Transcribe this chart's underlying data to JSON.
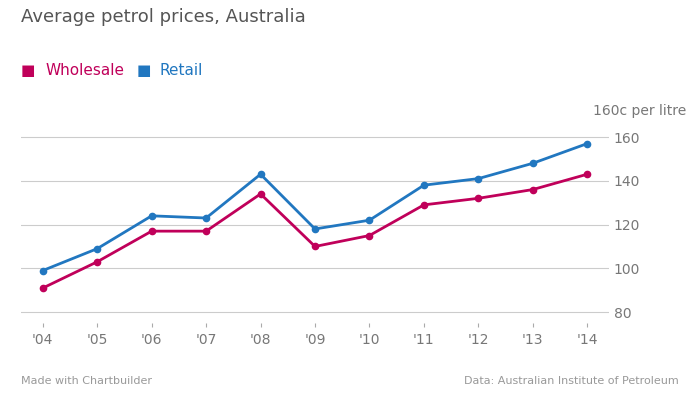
{
  "years": [
    2004,
    2005,
    2006,
    2007,
    2008,
    2009,
    2010,
    2011,
    2012,
    2013,
    2014
  ],
  "year_labels": [
    "'04",
    "'05",
    "'06",
    "'07",
    "'08",
    "'09",
    "'10",
    "'11",
    "'12",
    "'13",
    "'14"
  ],
  "wholesale": [
    91,
    103,
    117,
    117,
    134,
    110,
    115,
    129,
    132,
    136,
    143
  ],
  "retail": [
    99,
    109,
    124,
    123,
    143,
    118,
    122,
    138,
    141,
    148,
    157
  ],
  "wholesale_color": "#c0005a",
  "retail_color": "#2177c0",
  "background_color": "#ffffff",
  "grid_color": "#cccccc",
  "title": "Average petrol prices, Australia",
  "ylabel_text": "160c per litre",
  "ylim": [
    75,
    165
  ],
  "yticks": [
    80,
    100,
    120,
    140,
    160
  ],
  "title_fontsize": 13,
  "legend_fontsize": 11,
  "axis_fontsize": 10,
  "footnote_left": "Made with Chartbuilder",
  "footnote_right": "Data: Australian Institute of Petroleum",
  "line_width": 2.0,
  "marker_size": 4.5
}
